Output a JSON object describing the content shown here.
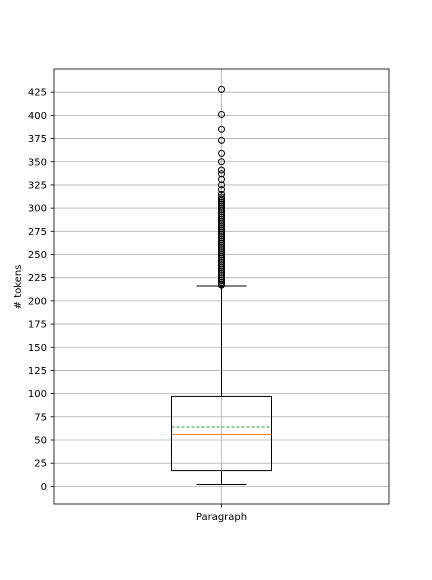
{
  "chart_data": {
    "type": "box",
    "title": "",
    "xlabel": "",
    "ylabel": "# tokens",
    "categories": [
      "Paragraph"
    ],
    "ylim": [
      -19,
      450
    ],
    "yticks": [
      0,
      25,
      50,
      75,
      100,
      125,
      150,
      175,
      200,
      225,
      250,
      275,
      300,
      325,
      350,
      375,
      400,
      425
    ],
    "grid": true,
    "box": {
      "whisker_low": 2,
      "q1": 17,
      "median": 56,
      "mean": 64,
      "q3": 97,
      "whisker_high": 216,
      "outliers": [
        428,
        401,
        385,
        373,
        359,
        350,
        341,
        337,
        331,
        325,
        320,
        315,
        312,
        310,
        308,
        306,
        304,
        302,
        300,
        298,
        296,
        294,
        292,
        290,
        288,
        286,
        284,
        282,
        280,
        278,
        276,
        274,
        272,
        270,
        268,
        266,
        264,
        262,
        260,
        258,
        256,
        254,
        252,
        250,
        248,
        246,
        244,
        242,
        240,
        238,
        236,
        234,
        232,
        230,
        228,
        226,
        224,
        222,
        220,
        218,
        217
      ]
    },
    "colors": {
      "box": "#000000",
      "median": "#ff7f0e",
      "mean": "#2ca02c",
      "grid": "#b0b0b0",
      "outlier": "#000000"
    }
  }
}
